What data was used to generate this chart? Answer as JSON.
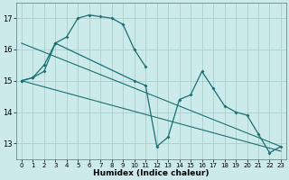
{
  "xlabel": "Humidex (Indice chaleur)",
  "background_color": "#cceaea",
  "grid_color": "#aacfcf",
  "line_color": "#1a7070",
  "xlim": [
    -0.5,
    23.5
  ],
  "ylim": [
    12.5,
    17.5
  ],
  "yticks": [
    13,
    14,
    15,
    16,
    17
  ],
  "xticks": [
    0,
    1,
    2,
    3,
    4,
    5,
    6,
    7,
    8,
    9,
    10,
    11,
    12,
    13,
    14,
    15,
    16,
    17,
    18,
    19,
    20,
    21,
    22,
    23
  ],
  "curve1_x": [
    0,
    1,
    2,
    3,
    4,
    5,
    6,
    7,
    8,
    9,
    10,
    11
  ],
  "curve1_y": [
    15.0,
    15.1,
    15.3,
    16.2,
    16.4,
    17.0,
    17.1,
    17.05,
    17.0,
    16.8,
    16.0,
    15.45
  ],
  "curve2_x": [
    0,
    1,
    2,
    3,
    10,
    11,
    12,
    13,
    14,
    15,
    16,
    17,
    18,
    19,
    20,
    21,
    22,
    23
  ],
  "curve2_y": [
    15.0,
    15.1,
    15.5,
    16.2,
    15.0,
    14.85,
    12.9,
    13.2,
    14.4,
    14.55,
    15.3,
    14.75,
    14.2,
    14.0,
    13.9,
    13.3,
    12.7,
    12.9
  ],
  "trend1_x": [
    0,
    23
  ],
  "trend1_y": [
    16.2,
    12.9
  ],
  "trend2_x": [
    0,
    23
  ],
  "trend2_y": [
    15.0,
    12.75
  ]
}
